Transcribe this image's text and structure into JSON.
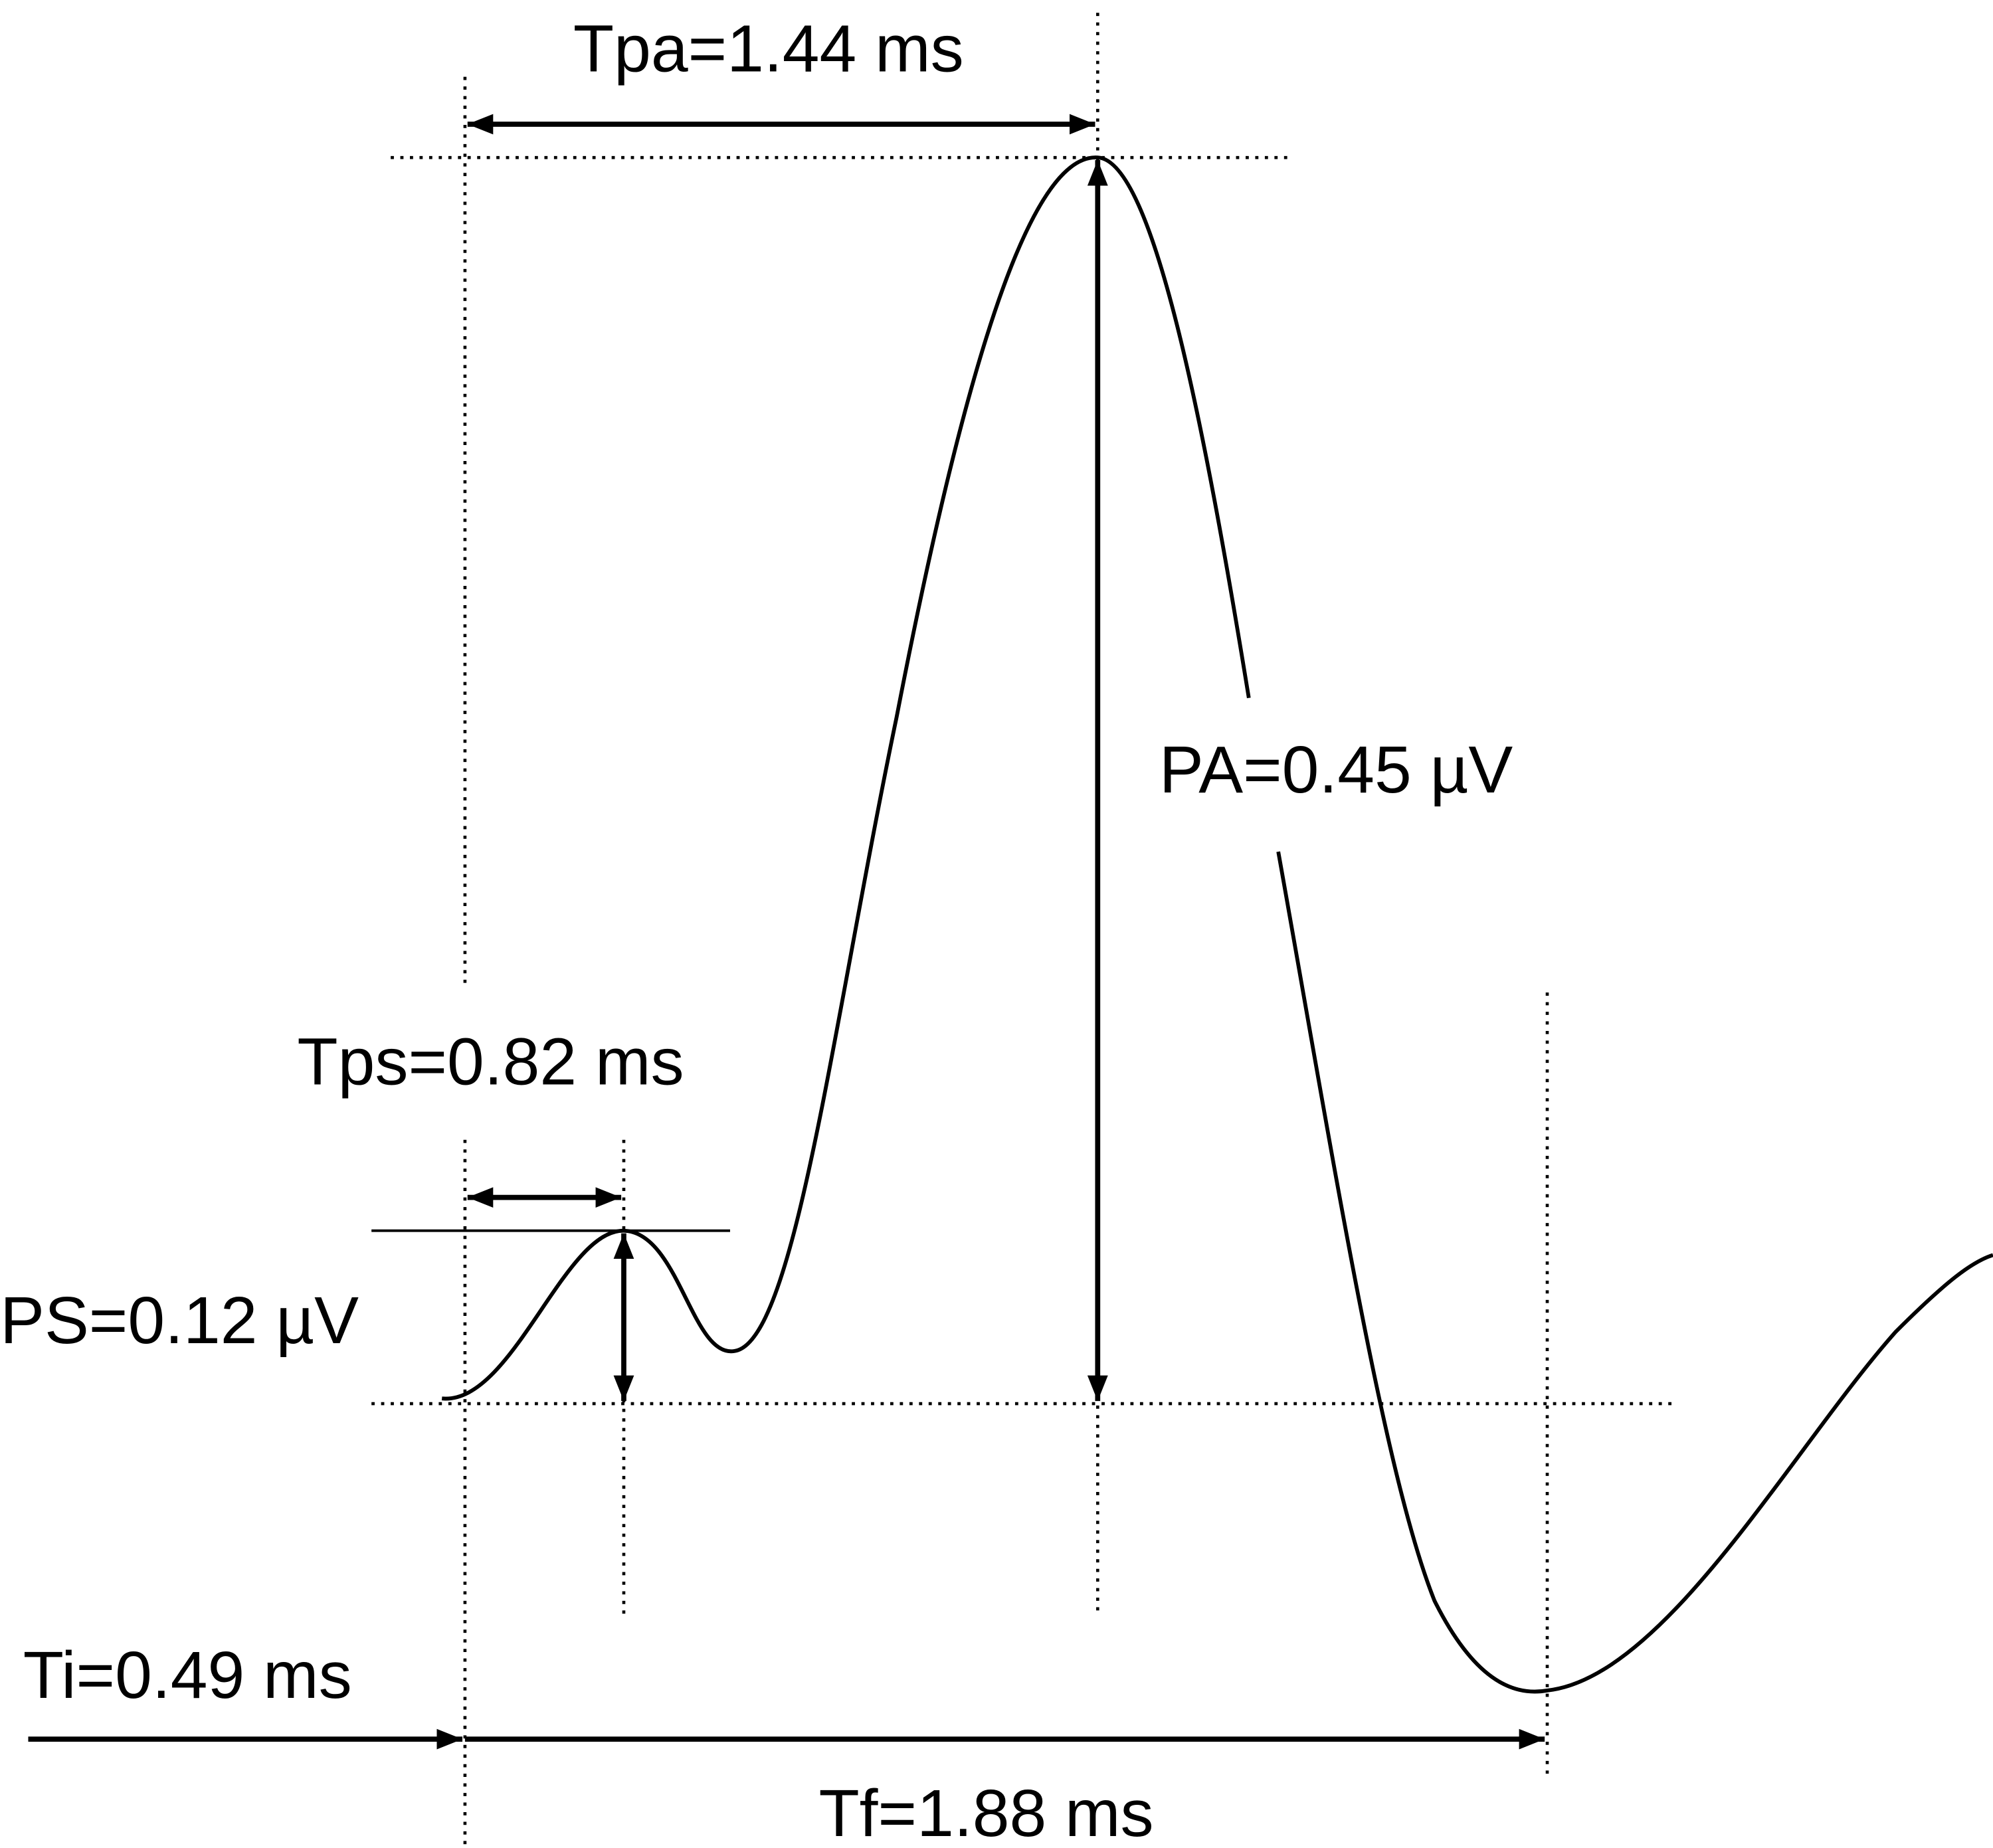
{
  "labels": {
    "tpa": "Tpa=1.44 ms",
    "pa": "PA=0.45 µV",
    "tps": "Tps=0.82 ms",
    "ps": "PS=0.12 µV",
    "ti": "Ti=0.49 ms",
    "tf": "Tf=1.88 ms"
  }
}
